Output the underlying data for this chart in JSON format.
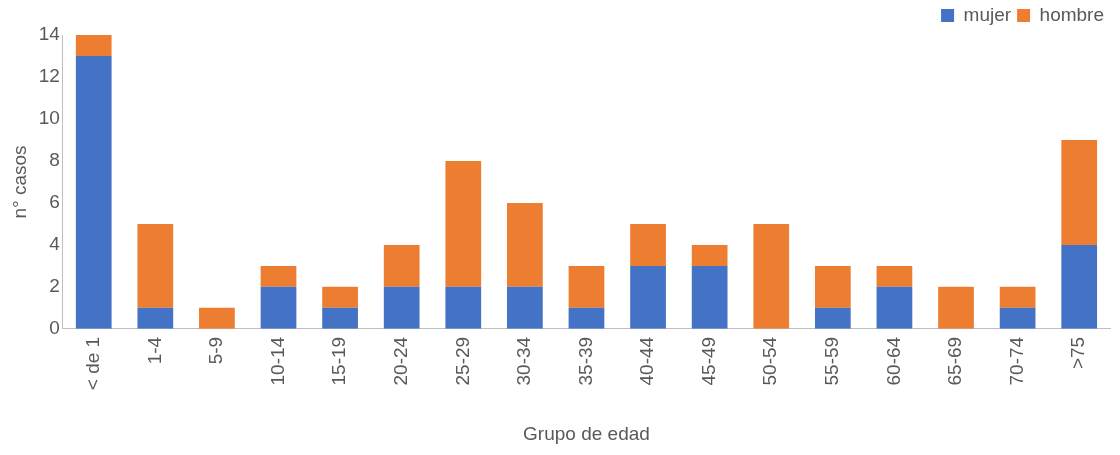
{
  "chart_data": {
    "type": "bar",
    "stacked": true,
    "xlabel": "Grupo de edad",
    "ylabel": "n° casos",
    "categories": [
      "< de 1",
      "1-4",
      "5-9",
      "10-14",
      "15-19",
      "20-24",
      "25-29",
      "30-34",
      "35-39",
      "40-44",
      "45-49",
      "50-54",
      "55-59",
      "60-64",
      "65-69",
      "70-74",
      ">75"
    ],
    "series": [
      {
        "name": "mujer",
        "color": "#4472c4",
        "values": [
          13,
          1,
          0,
          2,
          1,
          2,
          2,
          2,
          1,
          3,
          3,
          0,
          1,
          2,
          0,
          1,
          4
        ]
      },
      {
        "name": "hombre",
        "color": "#ed7d31",
        "values": [
          1,
          4,
          1,
          1,
          1,
          2,
          6,
          4,
          2,
          2,
          1,
          5,
          2,
          1,
          2,
          1,
          5
        ]
      }
    ],
    "ylim": [
      0,
      14
    ],
    "yticks": [
      0,
      2,
      4,
      6,
      8,
      10,
      12,
      14
    ],
    "grid": false,
    "legend": "top right"
  }
}
